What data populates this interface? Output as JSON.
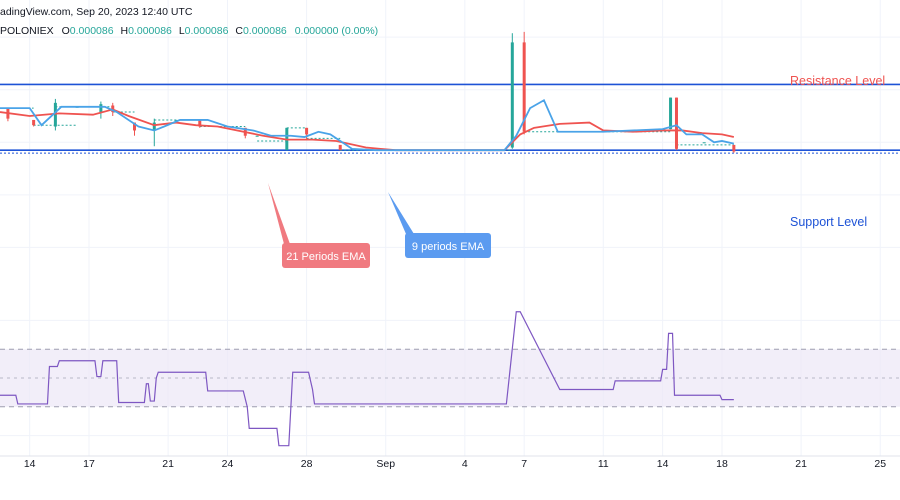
{
  "header": {
    "source_line": "adingView.com, Sep 20, 2023 12:40 UTC",
    "symbol": "POLONIEX",
    "o_label": "O",
    "o_value": "0.000086",
    "h_label": "H",
    "h_value": "0.000086",
    "l_label": "L",
    "l_value": "0.000086",
    "c_label": "C",
    "c_value": "0.000086",
    "change": "0.000000 (0.00%)"
  },
  "annotations": {
    "resistance": "Resistance Level",
    "support": "Support Level",
    "ema21": "21 Periods EMA",
    "ema9": "9 periods EMA"
  },
  "colors": {
    "up": "#26a69a",
    "down": "#ef5350",
    "ema9": "#4aa3e8",
    "ema21": "#ef5350",
    "level": "#1e53d6",
    "rsi": "#7e57c2",
    "rsi_band": "#ede7f6",
    "callout_red": "#f07a80",
    "callout_blue": "#5b9bf0",
    "grid": "#f0f3fa",
    "axis_text": "#131722"
  },
  "chart_data": {
    "type": "line",
    "x_tick_labels": [
      "14",
      "17",
      "21",
      "24",
      "28",
      "Sep",
      "4",
      "7",
      "11",
      "14",
      "18",
      "21",
      "25"
    ],
    "x_tick_days": [
      14,
      17,
      21,
      24,
      28,
      32,
      36,
      39,
      43,
      46,
      49,
      53,
      57
    ],
    "xlim": [
      12.5,
      58
    ],
    "price_ylim": [
      7.2e-05,
      9.3e-05
    ],
    "resistance_level": 8.84e-05,
    "support_level": 8.34e-05,
    "candles": [
      {
        "t": 12.9,
        "o": 8.66e-05,
        "h": 8.66e-05,
        "l": 8.56e-05,
        "c": 8.58e-05
      },
      {
        "t": 14.2,
        "o": 8.57e-05,
        "h": 8.57e-05,
        "l": 8.52e-05,
        "c": 8.53e-05
      },
      {
        "t": 15.3,
        "o": 8.52e-05,
        "h": 8.73e-05,
        "l": 8.49e-05,
        "c": 8.7e-05
      },
      {
        "t": 16.4,
        "o": 8.67e-05,
        "h": 8.67e-05,
        "l": 8.67e-05,
        "c": 8.67e-05
      },
      {
        "t": 17.6,
        "o": 8.63e-05,
        "h": 8.71e-05,
        "l": 8.58e-05,
        "c": 8.69e-05
      },
      {
        "t": 18.2,
        "o": 8.68e-05,
        "h": 8.7e-05,
        "l": 8.6e-05,
        "c": 8.63e-05
      },
      {
        "t": 19.3,
        "o": 8.55e-05,
        "h": 8.55e-05,
        "l": 8.45e-05,
        "c": 8.49e-05
      },
      {
        "t": 20.3,
        "o": 8.49e-05,
        "h": 8.58e-05,
        "l": 8.37e-05,
        "c": 8.55e-05
      },
      {
        "t": 21.4,
        "o": 8.57e-05,
        "h": 8.57e-05,
        "l": 8.57e-05,
        "c": 8.57e-05
      },
      {
        "t": 22.6,
        "o": 8.57e-05,
        "h": 8.57e-05,
        "l": 8.51e-05,
        "c": 8.52e-05
      },
      {
        "t": 23.7,
        "o": 8.52e-05,
        "h": 8.52e-05,
        "l": 8.52e-05,
        "c": 8.52e-05
      },
      {
        "t": 24.9,
        "o": 8.51e-05,
        "h": 8.51e-05,
        "l": 8.43e-05,
        "c": 8.45e-05
      },
      {
        "t": 25.5,
        "o": 8.45e-05,
        "h": 8.45e-05,
        "l": 8.45e-05,
        "c": 8.45e-05
      },
      {
        "t": 27.0,
        "o": 8.34e-05,
        "h": 8.51e-05,
        "l": 8.34e-05,
        "c": 8.51e-05
      },
      {
        "t": 28.0,
        "o": 8.51e-05,
        "h": 8.51e-05,
        "l": 8.42e-05,
        "c": 8.46e-05
      },
      {
        "t": 29.7,
        "o": 8.38e-05,
        "h": 8.38e-05,
        "l": 8.34e-05,
        "c": 8.34e-05
      },
      {
        "t": 38.4,
        "o": 8.36e-05,
        "h": 9.23e-05,
        "l": 8.35e-05,
        "c": 9.16e-05
      },
      {
        "t": 39.0,
        "o": 9.16e-05,
        "h": 9.24e-05,
        "l": 8.46e-05,
        "c": 8.48e-05
      },
      {
        "t": 46.4,
        "o": 8.5e-05,
        "h": 8.74e-05,
        "l": 8.5e-05,
        "c": 8.74e-05
      },
      {
        "t": 46.7,
        "o": 8.74e-05,
        "h": 8.74e-05,
        "l": 8.34e-05,
        "c": 8.35e-05
      },
      {
        "t": 48.1,
        "o": 8.4e-05,
        "h": 8.4e-05,
        "l": 8.4e-05,
        "c": 8.4e-05
      },
      {
        "t": 49.6,
        "o": 8.38e-05,
        "h": 8.38e-05,
        "l": 8.32e-05,
        "c": 8.33e-05
      }
    ],
    "dotted_segments": [
      {
        "t1": 12.5,
        "t2": 14.2,
        "v": 8.66e-05
      },
      {
        "t1": 14.2,
        "t2": 16.4,
        "v": 8.53e-05
      },
      {
        "t1": 15.3,
        "t2": 18.2,
        "v": 8.67e-05
      },
      {
        "t1": 18.2,
        "t2": 19.3,
        "v": 8.63e-05
      },
      {
        "t1": 20.3,
        "t2": 22.6,
        "v": 8.57e-05
      },
      {
        "t1": 22.6,
        "t2": 24.9,
        "v": 8.52e-05
      },
      {
        "t1": 25.5,
        "t2": 27.0,
        "v": 8.41e-05
      },
      {
        "t1": 27.0,
        "t2": 28.0,
        "v": 8.51e-05
      },
      {
        "t1": 28.0,
        "t2": 29.7,
        "v": 8.43e-05
      },
      {
        "t1": 29.7,
        "t2": 38.4,
        "v": 8.34e-05
      },
      {
        "t1": 39.0,
        "t2": 46.4,
        "v": 8.48e-05
      },
      {
        "t1": 46.7,
        "t2": 49.6,
        "v": 8.38e-05
      }
    ],
    "ema9": {
      "x": [
        12.5,
        14.0,
        14.6,
        15.6,
        17.2,
        17.8,
        18.4,
        19.5,
        20.3,
        20.8,
        21.6,
        23.0,
        24.0,
        25.3,
        26.2,
        27.2,
        27.9,
        28.6,
        29.2,
        29.8,
        30.3,
        31.5,
        32.5,
        35.0,
        38.0,
        38.6,
        39.3,
        40.0,
        40.7,
        43.0,
        46.0,
        46.7,
        47.2,
        48.0,
        48.6,
        49.0,
        49.6
      ],
      "y": [
        8.66e-05,
        8.66e-05,
        8.53e-05,
        8.67e-05,
        8.67e-05,
        8.67e-05,
        8.63e-05,
        8.52e-05,
        8.49e-05,
        8.52e-05,
        8.57e-05,
        8.57e-05,
        8.52e-05,
        8.49e-05,
        8.45e-05,
        8.45e-05,
        8.44e-05,
        8.48e-05,
        8.46e-05,
        8.4e-05,
        8.35e-05,
        8.34e-05,
        8.34e-05,
        8.34e-05,
        8.34e-05,
        8.45e-05,
        8.66e-05,
        8.72e-05,
        8.48e-05,
        8.48e-05,
        8.5e-05,
        8.53e-05,
        8.46e-05,
        8.46e-05,
        8.4e-05,
        8.41e-05,
        8.39e-05
      ]
    },
    "ema21": {
      "x": [
        12.5,
        14.0,
        15.5,
        17.2,
        18.2,
        19.0,
        20.3,
        21.4,
        22.4,
        23.5,
        24.5,
        25.8,
        27.0,
        28.3,
        29.5,
        31.0,
        32.5,
        35.0,
        38.0,
        38.8,
        39.5,
        40.8,
        42.3,
        43.0,
        44.5,
        46.0,
        47.0,
        48.0,
        49.0,
        49.6
      ],
      "y": [
        8.63e-05,
        8.6e-05,
        8.62e-05,
        8.61e-05,
        8.65e-05,
        8.6e-05,
        8.53e-05,
        8.55e-05,
        8.53e-05,
        8.52e-05,
        8.49e-05,
        8.45e-05,
        8.42e-05,
        8.42e-05,
        8.41e-05,
        8.36e-05,
        8.34e-05,
        8.34e-05,
        8.34e-05,
        8.46e-05,
        8.51e-05,
        8.54e-05,
        8.55e-05,
        8.49e-05,
        8.48e-05,
        8.49e-05,
        8.49e-05,
        8.47e-05,
        8.46e-05,
        8.44e-05
      ]
    },
    "rsi": {
      "ylim": [
        0,
        100
      ],
      "upper_band": 70,
      "middle_line": 50,
      "lower_band": 30,
      "x": [
        12.5,
        13.3,
        13.4,
        14.9,
        15.0,
        15.4,
        15.5,
        17.3,
        17.4,
        17.6,
        17.7,
        18.4,
        18.5,
        18.7,
        18.8,
        19.8,
        19.9,
        20.0,
        20.1,
        20.3,
        20.4,
        20.5,
        22.9,
        23.0,
        23.1,
        23.7,
        24.8,
        25.0,
        25.1,
        26.3,
        26.5,
        26.6,
        27.1,
        27.3,
        27.4,
        28.1,
        28.3,
        28.4,
        37.9,
        38.1,
        38.6,
        38.8,
        40.8,
        43.5,
        43.6,
        45.9,
        46.0,
        46.2,
        46.3,
        46.5,
        46.6,
        48.9,
        49.0,
        49.6
      ],
      "y": [
        38,
        38,
        32,
        32,
        58,
        58,
        62,
        62,
        51,
        51,
        62,
        62,
        33,
        33,
        33,
        33,
        46,
        46,
        34,
        34,
        50,
        54,
        54,
        41,
        41,
        41,
        41,
        30,
        15,
        15,
        15,
        3,
        3,
        54,
        54,
        54,
        42,
        32,
        32,
        32,
        96,
        96,
        42,
        42,
        48,
        48,
        56,
        56,
        81,
        81,
        38,
        38,
        35,
        35
      ]
    }
  }
}
